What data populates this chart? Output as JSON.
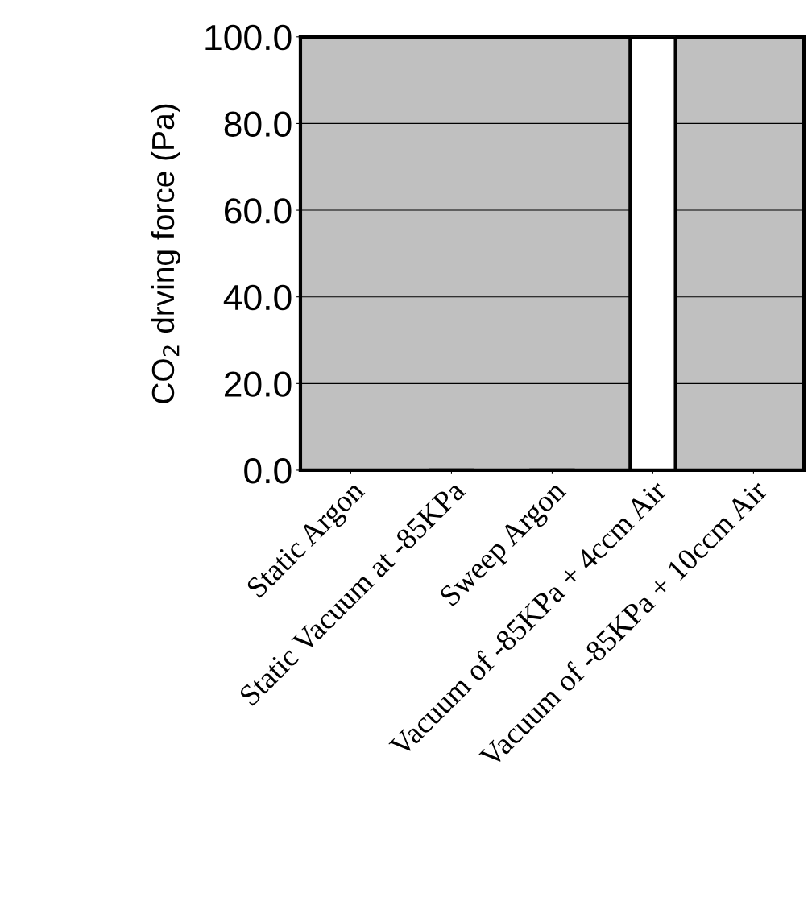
{
  "chart_data": {
    "type": "bar",
    "ylabel": "CO$_{2}$ drving force (Pa)",
    "categories": [
      "Static Argon",
      "Static Vacuum at -85KPa",
      "Sweep Argon",
      "Vacuum of -85KPa + 4ccm Air",
      "Vacuum of -85KPa + 10ccm Air"
    ],
    "values": [
      null,
      0,
      0,
      100,
      null
    ],
    "color": "#ffffff",
    "ylim": [
      0,
      100
    ],
    "yticks": [
      {
        "value": 0,
        "label": "0.0"
      },
      {
        "value": 20,
        "label": "20.0"
      },
      {
        "value": 40,
        "label": "40.0"
      },
      {
        "value": 60,
        "label": "60.0"
      },
      {
        "value": 80,
        "label": "80.0"
      },
      {
        "value": 100,
        "label": "100.0"
      }
    ],
    "grid": "y",
    "legend": false
  }
}
